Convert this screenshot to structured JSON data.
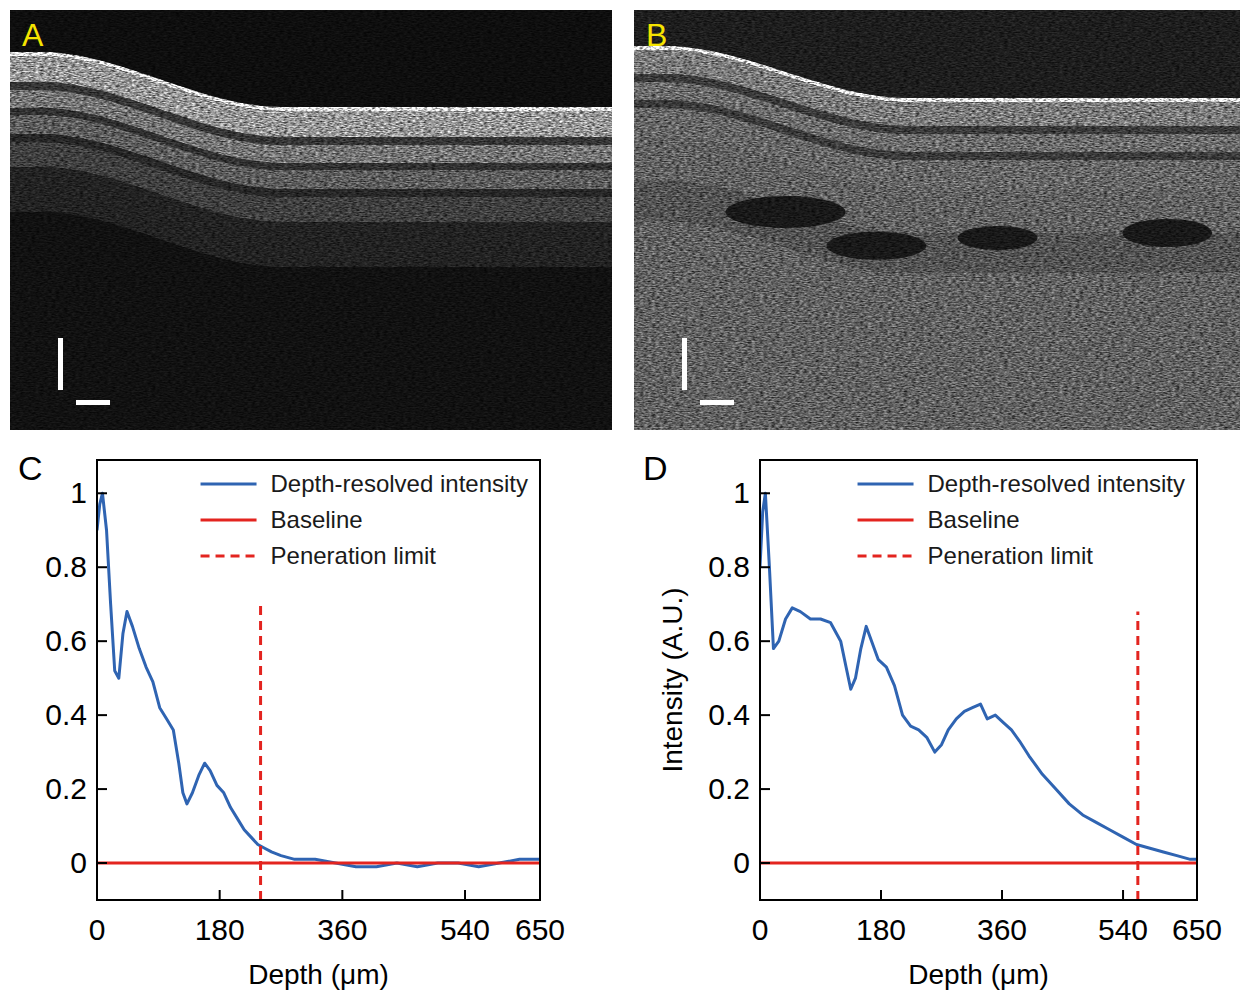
{
  "images": [
    {
      "label": "A"
    },
    {
      "label": "B"
    }
  ],
  "chart_data": [
    {
      "type": "line",
      "panel": "C",
      "x_label": "Depth (μm)",
      "xlim": [
        0,
        650
      ],
      "ylim": [
        -0.1,
        1.09
      ],
      "xticks": [
        0,
        180,
        360,
        540,
        650
      ],
      "yticks": [
        0,
        0.2,
        0.4,
        0.6,
        0.8,
        1
      ],
      "legend": "upper right",
      "grid": false,
      "series": [
        {
          "name": "Depth-resolved intensity",
          "color": "#2f64b2",
          "line_style": "solid",
          "x": [
            0,
            4,
            8,
            14,
            20,
            26,
            32,
            38,
            44,
            52,
            62,
            72,
            82,
            92,
            102,
            112,
            120,
            126,
            132,
            140,
            150,
            158,
            166,
            176,
            186,
            196,
            206,
            216,
            226,
            236,
            246,
            256,
            270,
            290,
            320,
            350,
            380,
            410,
            440,
            470,
            500,
            530,
            560,
            590,
            620,
            650
          ],
          "values": [
            0.9,
            0.97,
            1.0,
            0.9,
            0.7,
            0.52,
            0.5,
            0.62,
            0.68,
            0.64,
            0.58,
            0.53,
            0.49,
            0.42,
            0.39,
            0.36,
            0.27,
            0.19,
            0.16,
            0.19,
            0.24,
            0.27,
            0.25,
            0.21,
            0.19,
            0.15,
            0.12,
            0.09,
            0.07,
            0.05,
            0.04,
            0.03,
            0.02,
            0.01,
            0.01,
            0.0,
            -0.01,
            -0.01,
            0.0,
            -0.01,
            0.0,
            0.0,
            -0.01,
            0.0,
            0.01,
            0.01
          ]
        },
        {
          "name": "Baseline",
          "color": "#e3241f",
          "line_style": "solid",
          "x": [
            0,
            650
          ],
          "values": [
            0,
            0
          ]
        },
        {
          "name": "Peneration limit",
          "color": "#e3241f",
          "line_style": "dashed",
          "x": [
            240,
            240
          ],
          "values": [
            -0.1,
            0.71
          ]
        }
      ]
    },
    {
      "type": "line",
      "panel": "D",
      "x_label": "Depth (μm)",
      "y_label": "Intensity (A.U.)",
      "xlim": [
        0,
        650
      ],
      "ylim": [
        -0.1,
        1.09
      ],
      "xticks": [
        0,
        180,
        360,
        540,
        650
      ],
      "yticks": [
        0,
        0.2,
        0.4,
        0.6,
        0.8,
        1
      ],
      "legend": "upper right",
      "grid": false,
      "series": [
        {
          "name": "Depth-resolved intensity",
          "color": "#2f64b2",
          "line_style": "solid",
          "x": [
            0,
            4,
            8,
            14,
            20,
            28,
            38,
            48,
            60,
            75,
            90,
            105,
            120,
            128,
            135,
            142,
            150,
            158,
            166,
            176,
            188,
            200,
            212,
            224,
            236,
            248,
            260,
            270,
            280,
            292,
            304,
            316,
            328,
            338,
            350,
            362,
            374,
            386,
            400,
            420,
            440,
            460,
            480,
            500,
            520,
            540,
            560,
            580,
            600,
            620,
            640,
            650
          ],
          "values": [
            0.8,
            0.95,
            1.0,
            0.8,
            0.58,
            0.6,
            0.66,
            0.69,
            0.68,
            0.66,
            0.66,
            0.65,
            0.6,
            0.53,
            0.47,
            0.5,
            0.58,
            0.64,
            0.6,
            0.55,
            0.53,
            0.48,
            0.4,
            0.37,
            0.36,
            0.34,
            0.3,
            0.32,
            0.36,
            0.39,
            0.41,
            0.42,
            0.43,
            0.39,
            0.4,
            0.38,
            0.36,
            0.33,
            0.29,
            0.24,
            0.2,
            0.16,
            0.13,
            0.11,
            0.09,
            0.07,
            0.05,
            0.04,
            0.03,
            0.02,
            0.01,
            0.01
          ]
        },
        {
          "name": "Baseline",
          "color": "#e3241f",
          "line_style": "solid",
          "x": [
            0,
            650
          ],
          "values": [
            0,
            0
          ]
        },
        {
          "name": "Peneration limit",
          "color": "#e3241f",
          "line_style": "dashed",
          "x": [
            562,
            562
          ],
          "values": [
            -0.1,
            0.68
          ]
        }
      ]
    }
  ]
}
